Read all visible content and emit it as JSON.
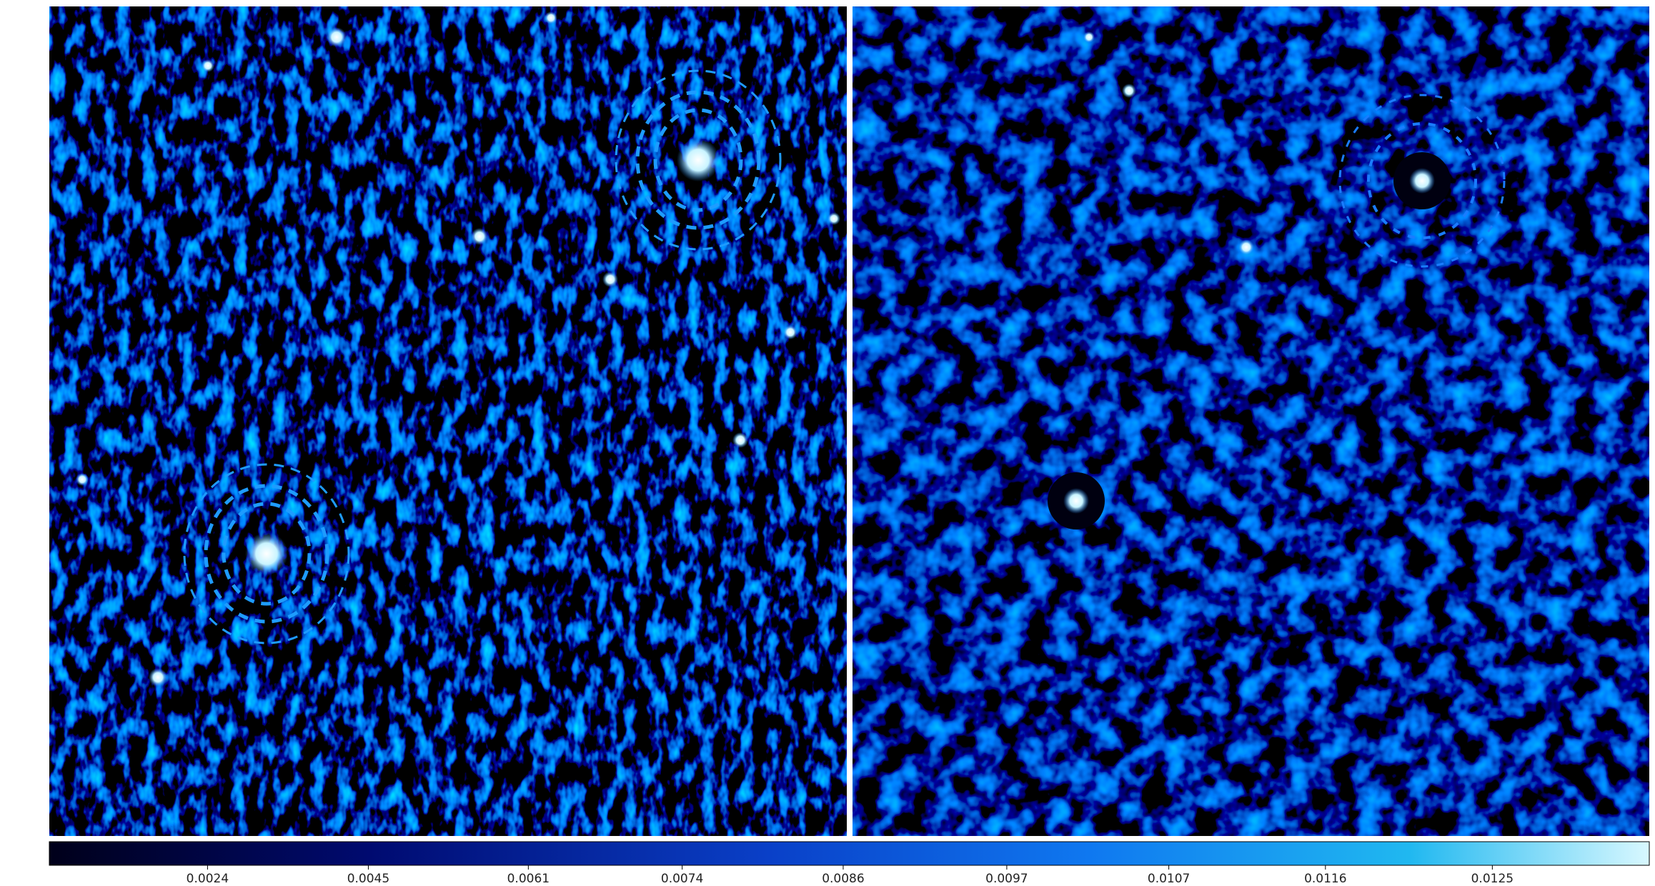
{
  "chart_data": {
    "type": "image",
    "colorbar_stretch": "sqrt",
    "colorbar_lim": [
      -0.0026,
      0.0133
    ],
    "colorbar_ticks": [
      0.0024,
      0.0045,
      0.0061,
      0.0074,
      0.0086,
      0.0097,
      0.0107,
      0.0116,
      0.0125
    ]
  }
}
